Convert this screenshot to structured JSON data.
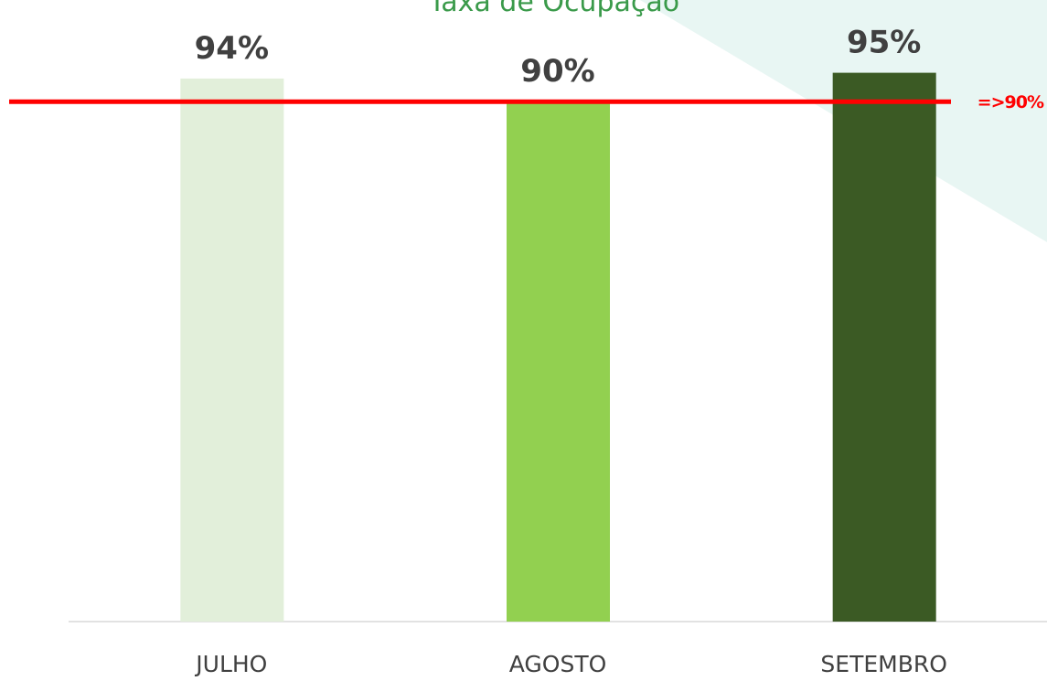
{
  "chart_data": {
    "type": "bar",
    "title": "Taxa de Ocupação",
    "categories": [
      "JULHO",
      "AGOSTO",
      "SETEMBRO"
    ],
    "values": [
      94,
      90,
      95
    ],
    "value_labels": [
      "94%",
      "90%",
      "95%"
    ],
    "colors": [
      "#e2efda",
      "#92d050",
      "#3b5a24"
    ],
    "ylim": [
      0,
      100
    ],
    "target": {
      "value": 90,
      "label": "=>90%",
      "color": "#ff0000"
    }
  }
}
